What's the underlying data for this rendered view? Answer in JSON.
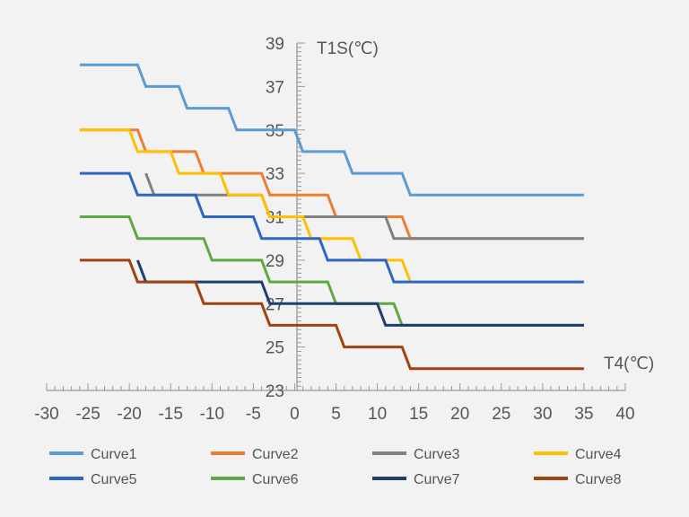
{
  "chart_data": {
    "type": "line",
    "step": true,
    "xlabel": "T4(℃)",
    "ylabel": "T1S(℃)",
    "xlim": [
      -30,
      40
    ],
    "ylim": [
      23,
      39
    ],
    "xticks": [
      -30,
      -25,
      -20,
      -15,
      -10,
      -5,
      0,
      5,
      10,
      15,
      20,
      25,
      30,
      35,
      40
    ],
    "yticks": [
      23,
      25,
      27,
      29,
      31,
      33,
      35,
      37,
      39
    ],
    "legend_position": "bottom",
    "series": [
      {
        "name": "Curve1",
        "color": "#5B9BD5",
        "points": [
          [
            -26,
            38
          ],
          [
            -19,
            38
          ],
          [
            -18,
            37
          ],
          [
            -14,
            37
          ],
          [
            -13,
            36
          ],
          [
            -8,
            36
          ],
          [
            -7,
            35
          ],
          [
            0,
            35
          ],
          [
            1,
            34
          ],
          [
            6,
            34
          ],
          [
            7,
            33
          ],
          [
            13,
            33
          ],
          [
            14,
            32
          ],
          [
            35,
            32
          ]
        ]
      },
      {
        "name": "Curve2",
        "color": "#ED7D31",
        "points": [
          [
            -26,
            35
          ],
          [
            -19,
            35
          ],
          [
            -18,
            34
          ],
          [
            -12,
            34
          ],
          [
            -11,
            33
          ],
          [
            -4,
            33
          ],
          [
            -3,
            32
          ],
          [
            4,
            32
          ],
          [
            5,
            31
          ],
          [
            13,
            31
          ],
          [
            14,
            30
          ],
          [
            35,
            30
          ]
        ]
      },
      {
        "name": "Curve3",
        "color": "#808080",
        "points": [
          [
            -18,
            33
          ],
          [
            -17,
            32
          ],
          [
            -4,
            32
          ],
          [
            -3,
            31
          ],
          [
            11,
            31
          ],
          [
            12,
            30
          ],
          [
            35,
            30
          ]
        ]
      },
      {
        "name": "Curve4",
        "color": "#FFC000",
        "points": [
          [
            -26,
            35
          ],
          [
            -20,
            35
          ],
          [
            -19,
            34
          ],
          [
            -15,
            34
          ],
          [
            -14,
            33
          ],
          [
            -9,
            33
          ],
          [
            -8,
            32
          ],
          [
            -4,
            32
          ],
          [
            -3,
            31
          ],
          [
            1,
            31
          ],
          [
            2,
            30
          ],
          [
            7,
            30
          ],
          [
            8,
            29
          ],
          [
            13,
            29
          ],
          [
            14,
            28
          ]
        ]
      },
      {
        "name": "Curve5",
        "color": "#2E66C4",
        "points": [
          [
            -26,
            33
          ],
          [
            -20,
            33
          ],
          [
            -19,
            32
          ],
          [
            -12,
            32
          ],
          [
            -11,
            31
          ],
          [
            -5,
            31
          ],
          [
            -4,
            30
          ],
          [
            3,
            30
          ],
          [
            4,
            29
          ],
          [
            11,
            29
          ],
          [
            12,
            28
          ],
          [
            35,
            28
          ]
        ]
      },
      {
        "name": "Curve6",
        "color": "#5FA83E",
        "points": [
          [
            -26,
            31
          ],
          [
            -20,
            31
          ],
          [
            -19,
            30
          ],
          [
            -11,
            30
          ],
          [
            -10,
            29
          ],
          [
            -4,
            29
          ],
          [
            -3,
            28
          ],
          [
            4,
            28
          ],
          [
            5,
            27
          ],
          [
            12,
            27
          ],
          [
            13,
            26
          ],
          [
            35,
            26
          ]
        ]
      },
      {
        "name": "Curve7",
        "color": "#1F3D6E",
        "points": [
          [
            -19,
            29
          ],
          [
            -18,
            28
          ],
          [
            -4,
            28
          ],
          [
            -3,
            27
          ],
          [
            10,
            27
          ],
          [
            11,
            26
          ],
          [
            35,
            26
          ]
        ]
      },
      {
        "name": "Curve8",
        "color": "#A0430E",
        "points": [
          [
            -26,
            29
          ],
          [
            -20,
            29
          ],
          [
            -19,
            28
          ],
          [
            -12,
            28
          ],
          [
            -11,
            27
          ],
          [
            -4,
            27
          ],
          [
            -3,
            26
          ],
          [
            5,
            26
          ],
          [
            6,
            25
          ],
          [
            13,
            25
          ],
          [
            14,
            24
          ],
          [
            35,
            24
          ]
        ]
      }
    ]
  }
}
